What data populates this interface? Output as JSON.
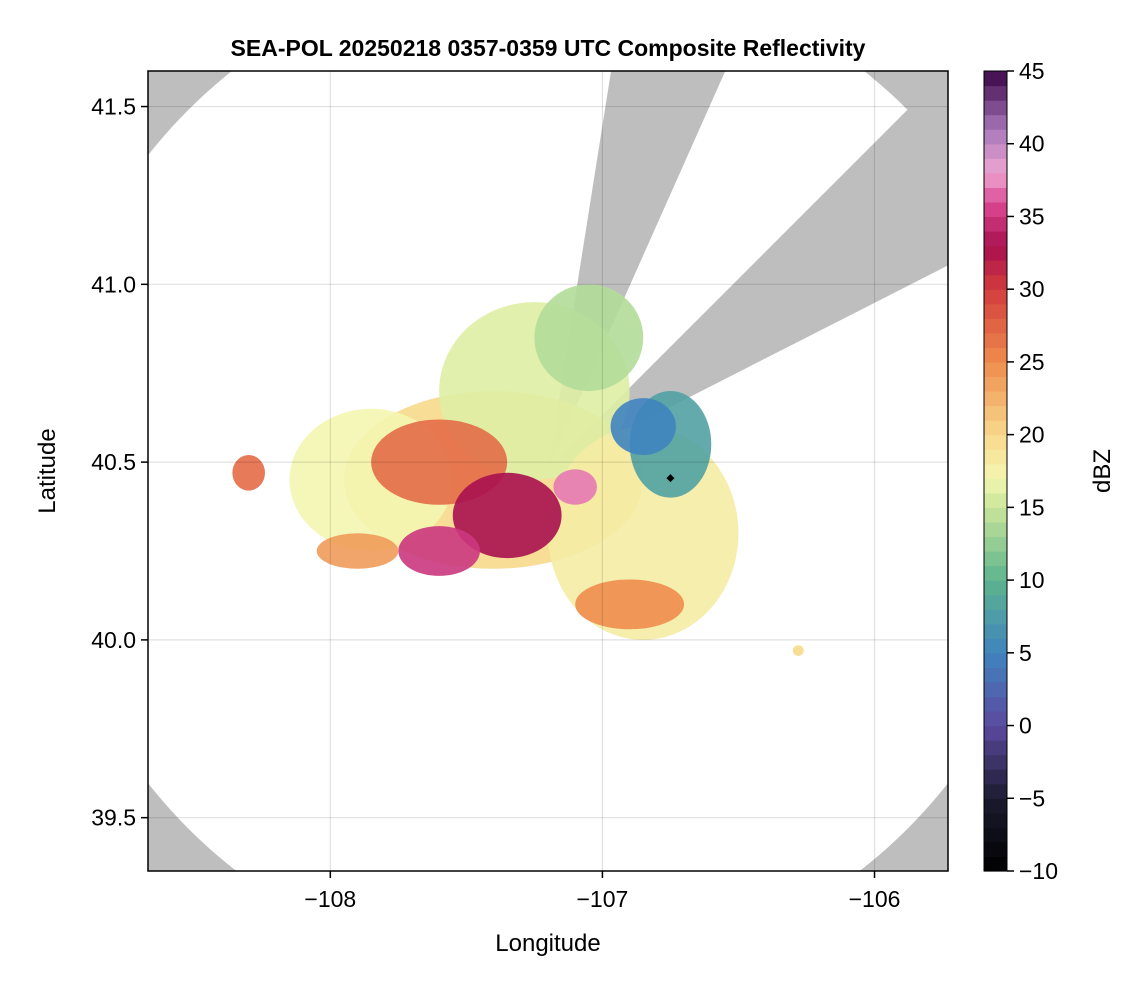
{
  "chart_data": {
    "type": "heatmap",
    "title": "SEA-POL 20250218 0357-0359 UTC Composite Reflectivity",
    "xlabel": "Longitude",
    "ylabel": "Latitude",
    "xlim": [
      -108.67,
      -105.73
    ],
    "ylim": [
      39.35,
      41.6
    ],
    "xticks": [
      -108,
      -107,
      -106
    ],
    "xtick_labels": [
      "−108",
      "−107",
      "−106"
    ],
    "yticks": [
      39.5,
      40.0,
      40.5,
      41.0,
      41.5
    ],
    "ytick_labels": [
      "39.5",
      "40.0",
      "40.5",
      "41.0",
      "41.5"
    ],
    "grid": true,
    "radar_location": [
      -107.2,
      40.48
    ],
    "radar_range_deg": 1.43,
    "blocked_sectors_deg_from_north": [
      [
        9,
        24
      ],
      [
        45,
        63
      ]
    ],
    "marker_point": [
      -106.75,
      40.455
    ],
    "colorbar": {
      "label": "dBZ",
      "range": [
        -10,
        45
      ],
      "ticks": [
        -10,
        -5,
        0,
        5,
        10,
        15,
        20,
        25,
        30,
        35,
        40,
        45
      ],
      "tick_labels": [
        "−10",
        "−5",
        "0",
        "5",
        "10",
        "15",
        "20",
        "25",
        "30",
        "35",
        "40",
        "45"
      ],
      "levels": 55,
      "colormap": "spectral reversed with magenta/purple top",
      "stops": [
        {
          "v": -10,
          "c": "#000000"
        },
        {
          "v": -5,
          "c": "#1b1b2f"
        },
        {
          "v": 0,
          "c": "#5c4a9f"
        },
        {
          "v": 5,
          "c": "#3f84bf"
        },
        {
          "v": 10,
          "c": "#5db48e"
        },
        {
          "v": 15,
          "c": "#c9e59a"
        },
        {
          "v": 17,
          "c": "#f4f6b0"
        },
        {
          "v": 20,
          "c": "#f7d98c"
        },
        {
          "v": 25,
          "c": "#ef8c4e"
        },
        {
          "v": 30,
          "c": "#d23c3c"
        },
        {
          "v": 33,
          "c": "#a8104f"
        },
        {
          "v": 36,
          "c": "#dd4b95"
        },
        {
          "v": 38,
          "c": "#eea6cf"
        },
        {
          "v": 41,
          "c": "#a777bb"
        },
        {
          "v": 45,
          "c": "#3a0646"
        }
      ]
    },
    "echo_cells": [
      {
        "lon": -107.4,
        "lat": 40.45,
        "rx": 0.55,
        "ry": 0.25,
        "dbz": 20
      },
      {
        "lon": -107.25,
        "lat": 40.7,
        "rx": 0.35,
        "ry": 0.25,
        "dbz": 16
      },
      {
        "lon": -107.05,
        "lat": 40.85,
        "rx": 0.2,
        "ry": 0.15,
        "dbz": 14
      },
      {
        "lon": -106.85,
        "lat": 40.3,
        "rx": 0.35,
        "ry": 0.3,
        "dbz": 18
      },
      {
        "lon": -106.75,
        "lat": 40.55,
        "rx": 0.15,
        "ry": 0.15,
        "dbz": 8
      },
      {
        "lon": -107.85,
        "lat": 40.45,
        "rx": 0.3,
        "ry": 0.2,
        "dbz": 17
      },
      {
        "lon": -107.6,
        "lat": 40.5,
        "rx": 0.25,
        "ry": 0.12,
        "dbz": 27
      },
      {
        "lon": -107.35,
        "lat": 40.35,
        "rx": 0.2,
        "ry": 0.12,
        "dbz": 33
      },
      {
        "lon": -107.6,
        "lat": 40.25,
        "rx": 0.15,
        "ry": 0.07,
        "dbz": 35
      },
      {
        "lon": -107.1,
        "lat": 40.43,
        "rx": 0.08,
        "ry": 0.05,
        "dbz": 37
      },
      {
        "lon": -106.9,
        "lat": 40.1,
        "rx": 0.2,
        "ry": 0.07,
        "dbz": 25
      },
      {
        "lon": -107.9,
        "lat": 40.25,
        "rx": 0.15,
        "ry": 0.05,
        "dbz": 24
      },
      {
        "lon": -108.3,
        "lat": 40.47,
        "rx": 0.06,
        "ry": 0.05,
        "dbz": 27
      },
      {
        "lon": -106.85,
        "lat": 40.6,
        "rx": 0.12,
        "ry": 0.08,
        "dbz": 5
      },
      {
        "lon": -106.28,
        "lat": 39.97,
        "rx": 0.02,
        "ry": 0.015,
        "dbz": 20
      }
    ]
  }
}
